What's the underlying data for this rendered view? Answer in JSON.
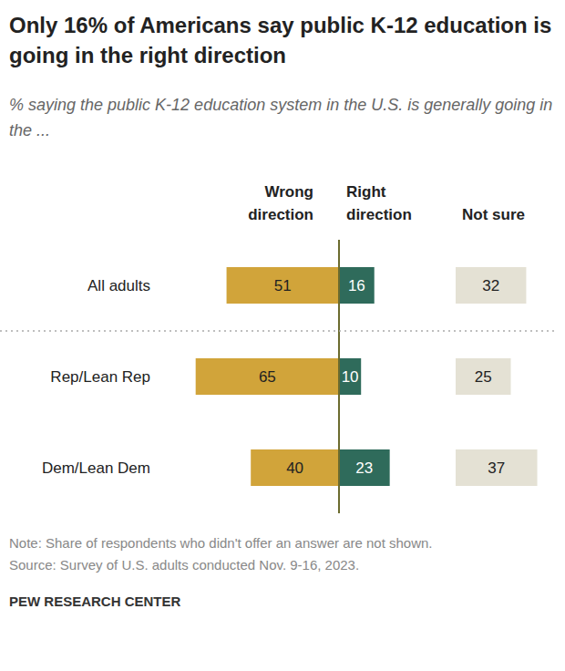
{
  "chart_data": {
    "type": "bar",
    "orientation": "horizontal",
    "stacked": true,
    "data_labels": true,
    "tick_labels": false,
    "title": "Only 16% of Americans say public K-12 education is going in the right direction",
    "subtitle": "% saying the public K-12 education system in the U.S. is generally going in the ...",
    "categories": [
      "All adults",
      "Rep/Lean Rep",
      "Dem/Lean Dem"
    ],
    "series": [
      {
        "name": "Wrong direction",
        "color": "#d1a43a",
        "values": [
          51,
          65,
          40
        ]
      },
      {
        "name": "Right direction",
        "color": "#2f6b5b",
        "values": [
          16,
          10,
          23
        ]
      },
      {
        "name": "Not sure",
        "color": "#e4e1d4",
        "values": [
          32,
          25,
          37
        ]
      }
    ],
    "note": "Note: Share of respondents who didn't offer an answer are not shown.",
    "source": "Source: Survey of U.S. adults conducted Nov. 9-16, 2023.",
    "brand": "PEW RESEARCH CENTER"
  }
}
